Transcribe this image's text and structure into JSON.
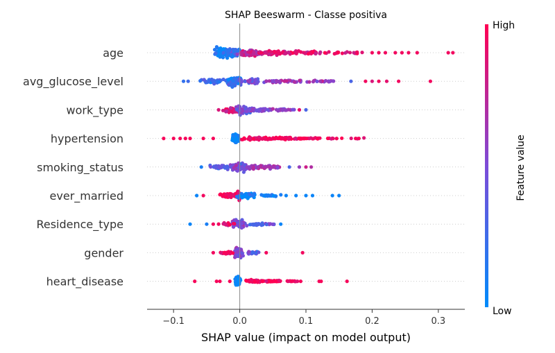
{
  "chart_data": {
    "type": "scatter",
    "title": "SHAP Beeswarm - Classe positiva",
    "xlabel": "SHAP value (impact on model output)",
    "ylabel": "",
    "xlim": [
      -0.14,
      0.34
    ],
    "x_ticks": [
      -0.1,
      0.0,
      0.1,
      0.2,
      0.3
    ],
    "x_tick_labels": [
      "−0.1",
      "0.0",
      "0.1",
      "0.2",
      "0.3"
    ],
    "colorbar": {
      "label": "Feature value",
      "high": "High",
      "low": "Low",
      "high_color": "#ff0052",
      "low_color": "#008bfb"
    },
    "features": [
      {
        "name": "age",
        "clusters": [
          {
            "x": -0.028,
            "n": 90,
            "spread": 0.012,
            "height": 0.9,
            "feature": 0.05
          },
          {
            "x": -0.01,
            "n": 70,
            "spread": 0.012,
            "height": 0.85,
            "feature": 0.2
          },
          {
            "x": 0.015,
            "n": 60,
            "spread": 0.018,
            "height": 0.55,
            "feature": 0.75
          },
          {
            "x": 0.05,
            "n": 60,
            "spread": 0.025,
            "height": 0.4,
            "feature": 0.88
          },
          {
            "x": 0.1,
            "n": 45,
            "spread": 0.03,
            "height": 0.3,
            "feature": 0.92
          },
          {
            "x": 0.16,
            "n": 20,
            "spread": 0.025,
            "height": 0.2,
            "feature": 0.95
          }
        ],
        "outliers": [
          [
            0.2,
            0.95
          ],
          [
            0.21,
            0.95
          ],
          [
            0.22,
            0.95
          ],
          [
            0.235,
            0.95
          ],
          [
            0.245,
            0.95
          ],
          [
            0.255,
            0.95
          ],
          [
            0.268,
            0.95
          ],
          [
            0.315,
            0.95
          ],
          [
            0.322,
            0.95
          ]
        ]
      },
      {
        "name": "avg_glucose_level",
        "clusters": [
          {
            "x": -0.008,
            "n": 110,
            "spread": 0.012,
            "height": 0.9,
            "feature": 0.2
          },
          {
            "x": -0.04,
            "n": 45,
            "spread": 0.02,
            "height": 0.35,
            "feature": 0.25
          },
          {
            "x": 0.02,
            "n": 50,
            "spread": 0.02,
            "height": 0.45,
            "feature": 0.5
          },
          {
            "x": 0.07,
            "n": 40,
            "spread": 0.03,
            "height": 0.25,
            "feature": 0.6
          },
          {
            "x": 0.13,
            "n": 18,
            "spread": 0.02,
            "height": 0.15,
            "feature": 0.6
          }
        ],
        "outliers": [
          [
            -0.085,
            0.2
          ],
          [
            -0.078,
            0.25
          ],
          [
            0.168,
            0.3
          ],
          [
            0.19,
            0.95
          ],
          [
            0.2,
            0.85
          ],
          [
            0.21,
            0.95
          ],
          [
            0.222,
            0.9
          ],
          [
            0.24,
            0.95
          ],
          [
            0.288,
            0.95
          ]
        ]
      },
      {
        "name": "work_type",
        "clusters": [
          {
            "x": -0.01,
            "n": 60,
            "spread": 0.012,
            "height": 0.55,
            "feature": 0.85
          },
          {
            "x": 0.005,
            "n": 55,
            "spread": 0.012,
            "height": 0.75,
            "feature": 0.45
          },
          {
            "x": 0.03,
            "n": 40,
            "spread": 0.02,
            "height": 0.35,
            "feature": 0.5
          },
          {
            "x": 0.065,
            "n": 25,
            "spread": 0.018,
            "height": 0.2,
            "feature": 0.55
          }
        ],
        "outliers": [
          [
            -0.032,
            0.85
          ],
          [
            0.09,
            0.9
          ],
          [
            0.1,
            0.3
          ]
        ]
      },
      {
        "name": "hypertension",
        "clusters": [
          {
            "x": -0.006,
            "n": 110,
            "spread": 0.005,
            "height": 0.8,
            "feature": 0.02
          },
          {
            "x": 0.025,
            "n": 45,
            "spread": 0.02,
            "height": 0.3,
            "feature": 0.97
          },
          {
            "x": 0.06,
            "n": 40,
            "spread": 0.02,
            "height": 0.25,
            "feature": 0.97
          },
          {
            "x": 0.1,
            "n": 22,
            "spread": 0.025,
            "height": 0.15,
            "feature": 0.97
          },
          {
            "x": 0.15,
            "n": 12,
            "spread": 0.03,
            "height": 0.1,
            "feature": 0.97
          }
        ],
        "outliers": [
          [
            -0.115,
            0.97
          ],
          [
            -0.1,
            0.97
          ],
          [
            -0.09,
            0.97
          ],
          [
            -0.082,
            0.97
          ],
          [
            -0.075,
            0.97
          ],
          [
            -0.055,
            0.97
          ],
          [
            -0.04,
            0.97
          ],
          [
            0.175,
            0.97
          ],
          [
            0.18,
            0.97
          ]
        ]
      },
      {
        "name": "smoking_status",
        "clusters": [
          {
            "x": 0.0,
            "n": 80,
            "spread": 0.012,
            "height": 0.7,
            "feature": 0.5
          },
          {
            "x": -0.03,
            "n": 35,
            "spread": 0.015,
            "height": 0.3,
            "feature": 0.35
          },
          {
            "x": 0.03,
            "n": 35,
            "spread": 0.02,
            "height": 0.3,
            "feature": 0.6
          },
          {
            "x": 0.055,
            "n": 18,
            "spread": 0.012,
            "height": 0.2,
            "feature": 0.65
          }
        ],
        "outliers": [
          [
            -0.058,
            0.1
          ],
          [
            0.075,
            0.3
          ],
          [
            0.09,
            0.6
          ],
          [
            0.1,
            0.8
          ],
          [
            0.108,
            0.7
          ]
        ]
      },
      {
        "name": "ever_married",
        "clusters": [
          {
            "x": -0.012,
            "n": 80,
            "spread": 0.018,
            "height": 0.45,
            "feature": 0.97
          },
          {
            "x": -0.002,
            "n": 40,
            "spread": 0.004,
            "height": 0.85,
            "feature": 0.95
          },
          {
            "x": 0.012,
            "n": 60,
            "spread": 0.015,
            "height": 0.5,
            "feature": 0.05
          },
          {
            "x": 0.045,
            "n": 22,
            "spread": 0.015,
            "height": 0.2,
            "feature": 0.05
          }
        ],
        "outliers": [
          [
            -0.065,
            0.05
          ],
          [
            -0.055,
            0.95
          ],
          [
            0.07,
            0.05
          ],
          [
            0.085,
            0.05
          ],
          [
            0.1,
            0.05
          ],
          [
            0.11,
            0.05
          ],
          [
            0.14,
            0.05
          ],
          [
            0.15,
            0.05
          ]
        ]
      },
      {
        "name": "Residence_type",
        "clusters": [
          {
            "x": 0.0,
            "n": 70,
            "spread": 0.01,
            "height": 0.75,
            "feature": 0.5
          },
          {
            "x": -0.02,
            "n": 20,
            "spread": 0.01,
            "height": 0.25,
            "feature": 0.9
          },
          {
            "x": 0.025,
            "n": 25,
            "spread": 0.012,
            "height": 0.25,
            "feature": 0.3
          },
          {
            "x": 0.045,
            "n": 10,
            "spread": 0.008,
            "height": 0.15,
            "feature": 0.4
          }
        ],
        "outliers": [
          [
            -0.075,
            0.05
          ],
          [
            -0.05,
            0.1
          ],
          [
            -0.04,
            0.95
          ],
          [
            0.062,
            0.05
          ]
        ]
      },
      {
        "name": "gender",
        "clusters": [
          {
            "x": -0.002,
            "n": 80,
            "spread": 0.006,
            "height": 0.8,
            "feature": 0.55
          },
          {
            "x": -0.02,
            "n": 25,
            "spread": 0.01,
            "height": 0.25,
            "feature": 0.95
          },
          {
            "x": 0.02,
            "n": 20,
            "spread": 0.01,
            "height": 0.25,
            "feature": 0.4
          }
        ],
        "outliers": [
          [
            -0.04,
            0.95
          ],
          [
            0.04,
            0.95
          ],
          [
            0.095,
            0.95
          ]
        ]
      },
      {
        "name": "heart_disease",
        "clusters": [
          {
            "x": -0.003,
            "n": 110,
            "spread": 0.003,
            "height": 0.9,
            "feature": 0.02
          },
          {
            "x": 0.02,
            "n": 35,
            "spread": 0.012,
            "height": 0.25,
            "feature": 0.97
          },
          {
            "x": 0.05,
            "n": 30,
            "spread": 0.015,
            "height": 0.2,
            "feature": 0.97
          },
          {
            "x": 0.08,
            "n": 15,
            "spread": 0.01,
            "height": 0.15,
            "feature": 0.97
          }
        ],
        "outliers": [
          [
            -0.068,
            0.97
          ],
          [
            -0.035,
            0.97
          ],
          [
            -0.03,
            0.97
          ],
          [
            -0.015,
            0.97
          ],
          [
            0.092,
            0.97
          ],
          [
            0.12,
            0.97
          ],
          [
            0.123,
            0.97
          ],
          [
            0.162,
            0.97
          ]
        ]
      }
    ]
  }
}
